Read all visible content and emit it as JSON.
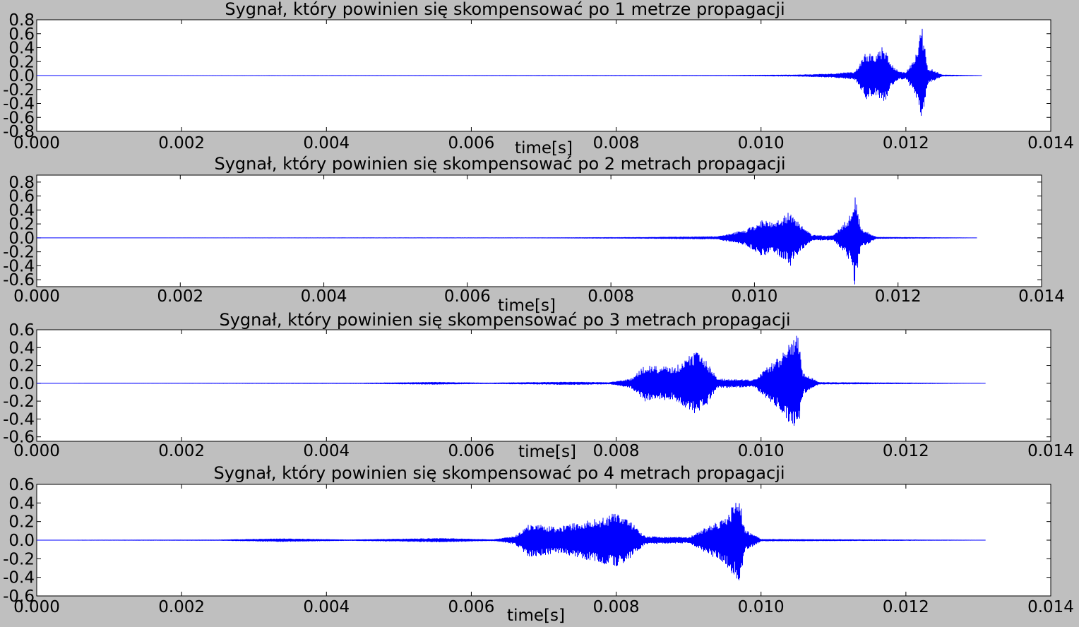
{
  "chart_data": [
    {
      "type": "line",
      "title": "Sygnał, który powinien się skompensować po 1 metrze propagacji",
      "xlabel": "time[s]",
      "ylabel": "",
      "xlim": [
        0,
        0.014
      ],
      "ylim": [
        -0.8,
        0.8
      ],
      "xticks": [
        "0.000",
        "0.002",
        "0.004",
        "0.006",
        "0.008",
        "0.010",
        "0.012",
        "0.014"
      ],
      "yticks": [
        "0.8",
        "0.6",
        "0.4",
        "0.2",
        "0.0",
        "-0.2",
        "-0.4",
        "-0.6",
        "-0.8"
      ],
      "grid": false,
      "series": [
        {
          "color": "#0000ff",
          "x_end": 0.01305,
          "envelope": [
            [
              0.0,
              0.0
            ],
            [
              0.0095,
              0.003
            ],
            [
              0.0105,
              0.01
            ],
            [
              0.011,
              0.025
            ],
            [
              0.0113,
              0.06
            ],
            [
              0.01145,
              0.34
            ],
            [
              0.0116,
              0.3
            ],
            [
              0.0117,
              0.45
            ],
            [
              0.01178,
              0.2
            ],
            [
              0.0119,
              0.06
            ],
            [
              0.012,
              0.04
            ],
            [
              0.01215,
              0.35
            ],
            [
              0.01222,
              0.75
            ],
            [
              0.0123,
              0.12
            ],
            [
              0.0125,
              0.01
            ],
            [
              0.01305,
              0.0
            ]
          ]
        }
      ]
    },
    {
      "type": "line",
      "title": "Sygnał, który powinien się skompensować po 2 metrach propagacji",
      "xlabel": "time[s]",
      "ylabel": "",
      "xlim": [
        0,
        0.014
      ],
      "ylim": [
        -0.7,
        0.9
      ],
      "xticks": [
        "0.000",
        "0.002",
        "0.004",
        "0.006",
        "0.008",
        "0.010",
        "0.012",
        "0.014"
      ],
      "yticks": [
        "0.8",
        "0.6",
        "0.4",
        "0.2",
        "0.0",
        "-0.2",
        "-0.4",
        "-0.6"
      ],
      "grid": false,
      "series": [
        {
          "color": "#0000ff",
          "x_end": 0.0131,
          "envelope": [
            [
              0.0,
              0.0
            ],
            [
              0.007,
              0.002
            ],
            [
              0.0085,
              0.008
            ],
            [
              0.0095,
              0.02
            ],
            [
              0.0099,
              0.12
            ],
            [
              0.0101,
              0.26
            ],
            [
              0.0103,
              0.22
            ],
            [
              0.0105,
              0.4
            ],
            [
              0.01065,
              0.18
            ],
            [
              0.0108,
              0.04
            ],
            [
              0.0111,
              0.03
            ],
            [
              0.01135,
              0.35
            ],
            [
              0.0114,
              0.7
            ],
            [
              0.01148,
              0.15
            ],
            [
              0.0117,
              0.01
            ],
            [
              0.0131,
              0.0
            ]
          ]
        }
      ]
    },
    {
      "type": "line",
      "title": "Sygnał, który powinien się skompensować po 3 metrach propagacji",
      "xlabel": "time[s]",
      "ylabel": "",
      "xlim": [
        0,
        0.014
      ],
      "ylim": [
        -0.65,
        0.6
      ],
      "xticks": [
        "0.000",
        "0.002",
        "0.004",
        "0.006",
        "0.008",
        "0.010",
        "0.012",
        "0.014"
      ],
      "yticks": [
        "0.6",
        "0.4",
        "0.2",
        "0.0",
        "-0.2",
        "-0.4",
        "-0.6"
      ],
      "grid": false,
      "series": [
        {
          "color": "#0000ff",
          "x_end": 0.0131,
          "envelope": [
            [
              0.0,
              0.0
            ],
            [
              0.0045,
              0.003
            ],
            [
              0.0055,
              0.012
            ],
            [
              0.0062,
              0.004
            ],
            [
              0.0074,
              0.015
            ],
            [
              0.0079,
              0.008
            ],
            [
              0.0082,
              0.05
            ],
            [
              0.0084,
              0.2
            ],
            [
              0.0088,
              0.18
            ],
            [
              0.009,
              0.3
            ],
            [
              0.0091,
              0.38
            ],
            [
              0.00925,
              0.25
            ],
            [
              0.0094,
              0.05
            ],
            [
              0.0099,
              0.04
            ],
            [
              0.01025,
              0.3
            ],
            [
              0.0105,
              0.6
            ],
            [
              0.01058,
              0.12
            ],
            [
              0.0108,
              0.01
            ],
            [
              0.0131,
              0.0
            ]
          ]
        }
      ]
    },
    {
      "type": "line",
      "title": "Sygnał, który powinien się skompensować po 4 metrach propagacji",
      "xlabel": "time[s]",
      "ylabel": "",
      "xlim": [
        0,
        0.014
      ],
      "ylim": [
        -0.6,
        0.6
      ],
      "xticks": [
        "0.000",
        "0.002",
        "0.004",
        "0.006",
        "0.008",
        "0.010",
        "0.012",
        "0.014"
      ],
      "yticks": [
        "0.6",
        "0.4",
        "0.2",
        "0.0",
        "-0.2",
        "-0.4",
        "-0.6"
      ],
      "grid": false,
      "series": [
        {
          "color": "#0000ff",
          "x_end": 0.0131,
          "envelope": [
            [
              0.0,
              0.0
            ],
            [
              0.0025,
              0.003
            ],
            [
              0.0034,
              0.016
            ],
            [
              0.0043,
              0.004
            ],
            [
              0.0056,
              0.02
            ],
            [
              0.0063,
              0.006
            ],
            [
              0.0066,
              0.04
            ],
            [
              0.0068,
              0.18
            ],
            [
              0.0072,
              0.14
            ],
            [
              0.0078,
              0.25
            ],
            [
              0.008,
              0.29
            ],
            [
              0.0082,
              0.2
            ],
            [
              0.0084,
              0.04
            ],
            [
              0.009,
              0.03
            ],
            [
              0.0095,
              0.25
            ],
            [
              0.0097,
              0.48
            ],
            [
              0.00978,
              0.12
            ],
            [
              0.01,
              0.01
            ],
            [
              0.0131,
              0.0
            ]
          ]
        }
      ]
    }
  ]
}
